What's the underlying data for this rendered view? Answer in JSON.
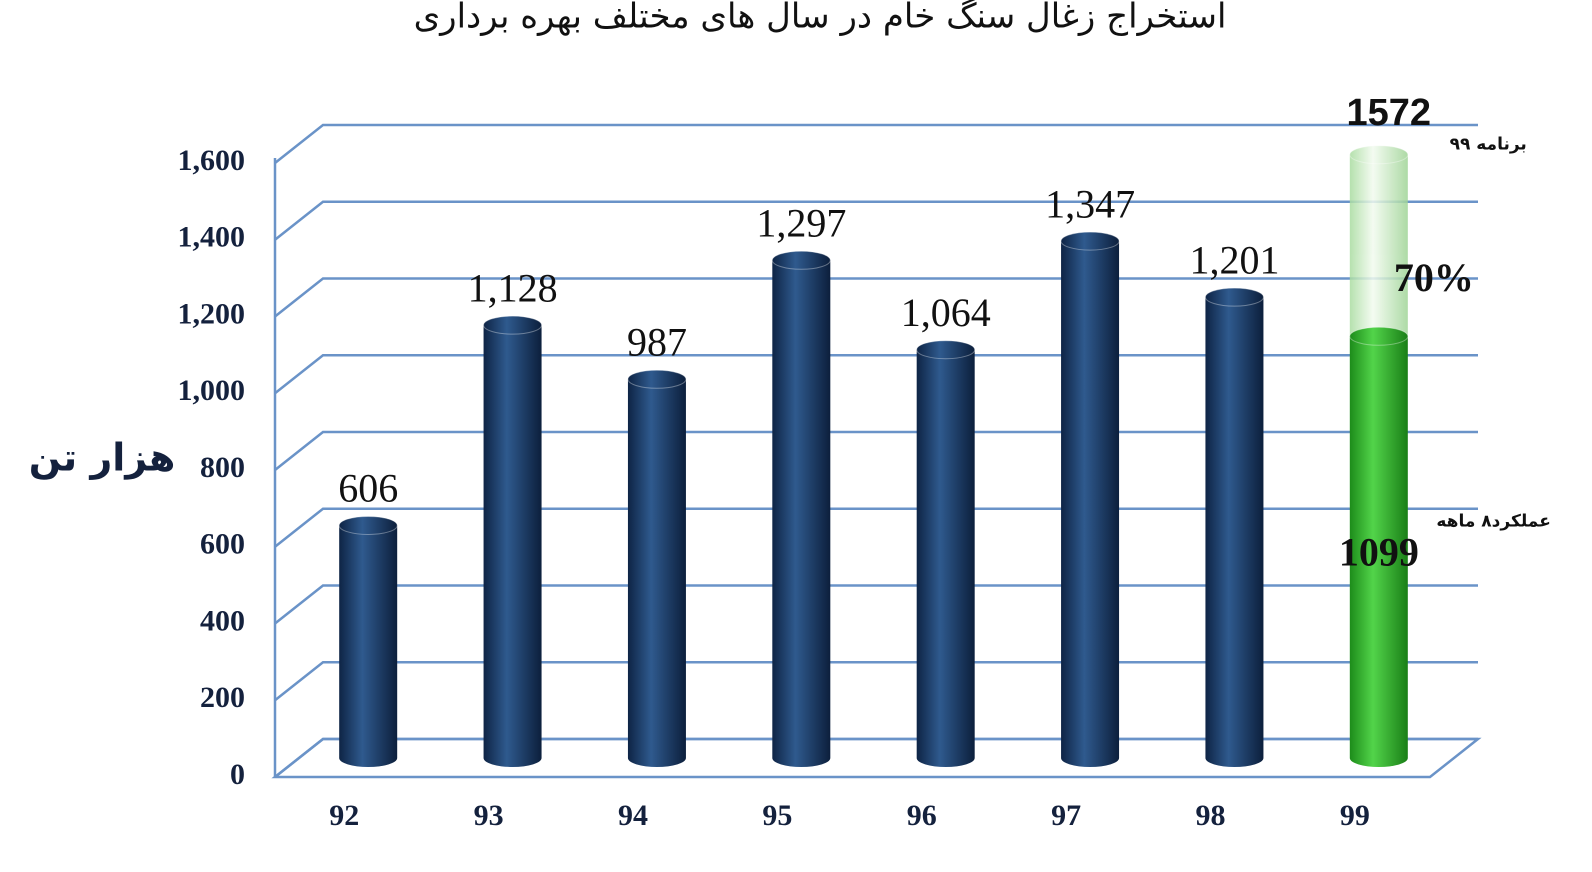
{
  "chart_data": {
    "type": "bar3d",
    "title": "استخراج زغال سنگ خام در سال های مختلف بهره برداری",
    "y_label": "هزار تن",
    "categories": [
      "92",
      "93",
      "94",
      "95",
      "96",
      "97",
      "98",
      "99"
    ],
    "values": [
      606,
      1128,
      987,
      1297,
      1064,
      1347,
      1201,
      1099
    ],
    "value_labels": [
      "606",
      "1,128",
      "987",
      "1,297",
      "1,064",
      "1,347",
      "1,201",
      "1099"
    ],
    "color": "#1b3a66",
    "highlight_color": "#2fb52a",
    "plan": {
      "value": 1572,
      "label": "1572",
      "note": "برنامه ۹۹",
      "color": "#cdeec6"
    },
    "actual_note": "عملکرد۸ ماهه",
    "percent": {
      "value": 70,
      "label": "70%"
    },
    "ylim": [
      0,
      1600
    ],
    "yticks": [
      0,
      200,
      400,
      600,
      800,
      {
        "value": 1000,
        "label": "1,000"
      },
      {
        "value": 1200,
        "label": "1,200"
      },
      {
        "value": 1400,
        "label": "1,400"
      },
      {
        "value": 1600,
        "label": "1,600"
      }
    ],
    "grid": true
  }
}
